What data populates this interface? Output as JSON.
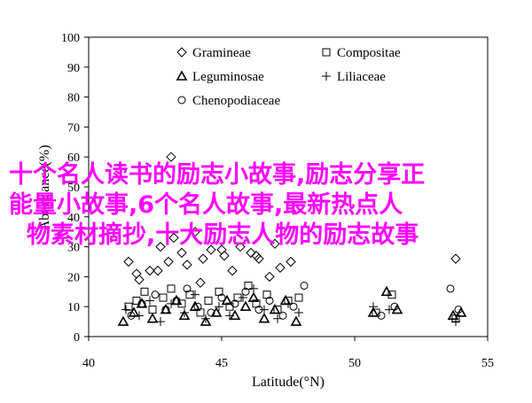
{
  "chart_data": {
    "type": "scatter",
    "xlabel": "Latitude(°N)",
    "ylabel": "Abundance(%)",
    "xlim": [
      40,
      55
    ],
    "ylim": [
      0,
      100
    ],
    "xticks": [
      "40",
      "45",
      "50",
      "55"
    ],
    "yticks": [
      "0",
      "10",
      "20",
      "30",
      "40",
      "50",
      "60",
      "70",
      "80",
      "90",
      "100"
    ],
    "grid": false,
    "legend_position": "top-left",
    "series": [
      {
        "name": "Gramineae",
        "marker": "diamond",
        "x": [
          41.5,
          41.9,
          42.3,
          42.7,
          43.0,
          43.2,
          43.5,
          43.7,
          44.0,
          44.3,
          44.6,
          45.1,
          45.4,
          45.7,
          46.1,
          46.4,
          46.8,
          47.2,
          47.6,
          41.8,
          43.1,
          44.2,
          46.3,
          47.0,
          42.6,
          45.0,
          53.8
        ],
        "y": [
          25,
          19,
          22,
          30,
          25,
          33,
          28,
          24,
          35,
          26,
          29,
          27,
          22,
          30,
          28,
          26,
          20,
          23,
          25,
          21,
          60,
          18,
          27,
          31,
          22,
          29,
          26
        ]
      },
      {
        "name": "Compositae",
        "marker": "square",
        "x": [
          41.5,
          41.8,
          42.1,
          42.4,
          42.8,
          43.1,
          43.5,
          43.8,
          44.2,
          44.5,
          44.9,
          45.3,
          45.6,
          46.0,
          46.3,
          46.7,
          47.1,
          47.5,
          47.9,
          50.8,
          51.4,
          53.8
        ],
        "y": [
          10,
          12,
          15,
          9,
          13,
          16,
          11,
          14,
          8,
          12,
          15,
          10,
          13,
          17,
          11,
          14,
          9,
          12,
          13,
          8,
          14,
          6
        ]
      },
      {
        "name": "Leguminosae",
        "marker": "triangle",
        "x": [
          41.3,
          41.7,
          42.0,
          42.4,
          42.9,
          43.3,
          43.6,
          44.0,
          44.4,
          44.8,
          45.2,
          45.5,
          45.9,
          46.2,
          46.6,
          47.0,
          47.4,
          47.8,
          50.7,
          51.2,
          51.6,
          53.7,
          54.0
        ],
        "y": [
          5,
          8,
          11,
          6,
          9,
          12,
          7,
          10,
          5,
          8,
          12,
          7,
          10,
          13,
          6,
          9,
          12,
          5,
          8,
          15,
          9,
          7,
          8
        ]
      },
      {
        "name": "Liliaceae",
        "marker": "plus",
        "x": [
          41.4,
          41.9,
          42.3,
          42.7,
          43.1,
          43.6,
          44.0,
          44.4,
          44.9,
          45.3,
          45.8,
          46.2,
          46.6,
          47.1,
          47.5,
          47.9,
          50.7,
          51.3,
          53.8
        ],
        "y": [
          9,
          7,
          12,
          5,
          11,
          8,
          14,
          6,
          10,
          7,
          13,
          16,
          9,
          6,
          11,
          8,
          10,
          9,
          5
        ]
      },
      {
        "name": "Chenopodiaceae",
        "marker": "circle",
        "x": [
          41.6,
          42.0,
          42.5,
          42.9,
          43.3,
          43.7,
          44.1,
          44.6,
          45.0,
          45.5,
          45.9,
          46.4,
          46.8,
          47.3,
          47.7,
          48.1,
          51.0,
          51.5,
          53.6,
          53.9
        ],
        "y": [
          7,
          11,
          14,
          9,
          12,
          16,
          10,
          8,
          13,
          11,
          15,
          9,
          12,
          7,
          10,
          17,
          7,
          10,
          16,
          9
        ]
      }
    ]
  },
  "overlay": {
    "line1": "十个名人读书的励志小故事,励志分享正",
    "line2": "能量小故事,6个名人故事,最新热点人",
    "line3": "物素材摘抄,十大励志人物的励志故事"
  }
}
